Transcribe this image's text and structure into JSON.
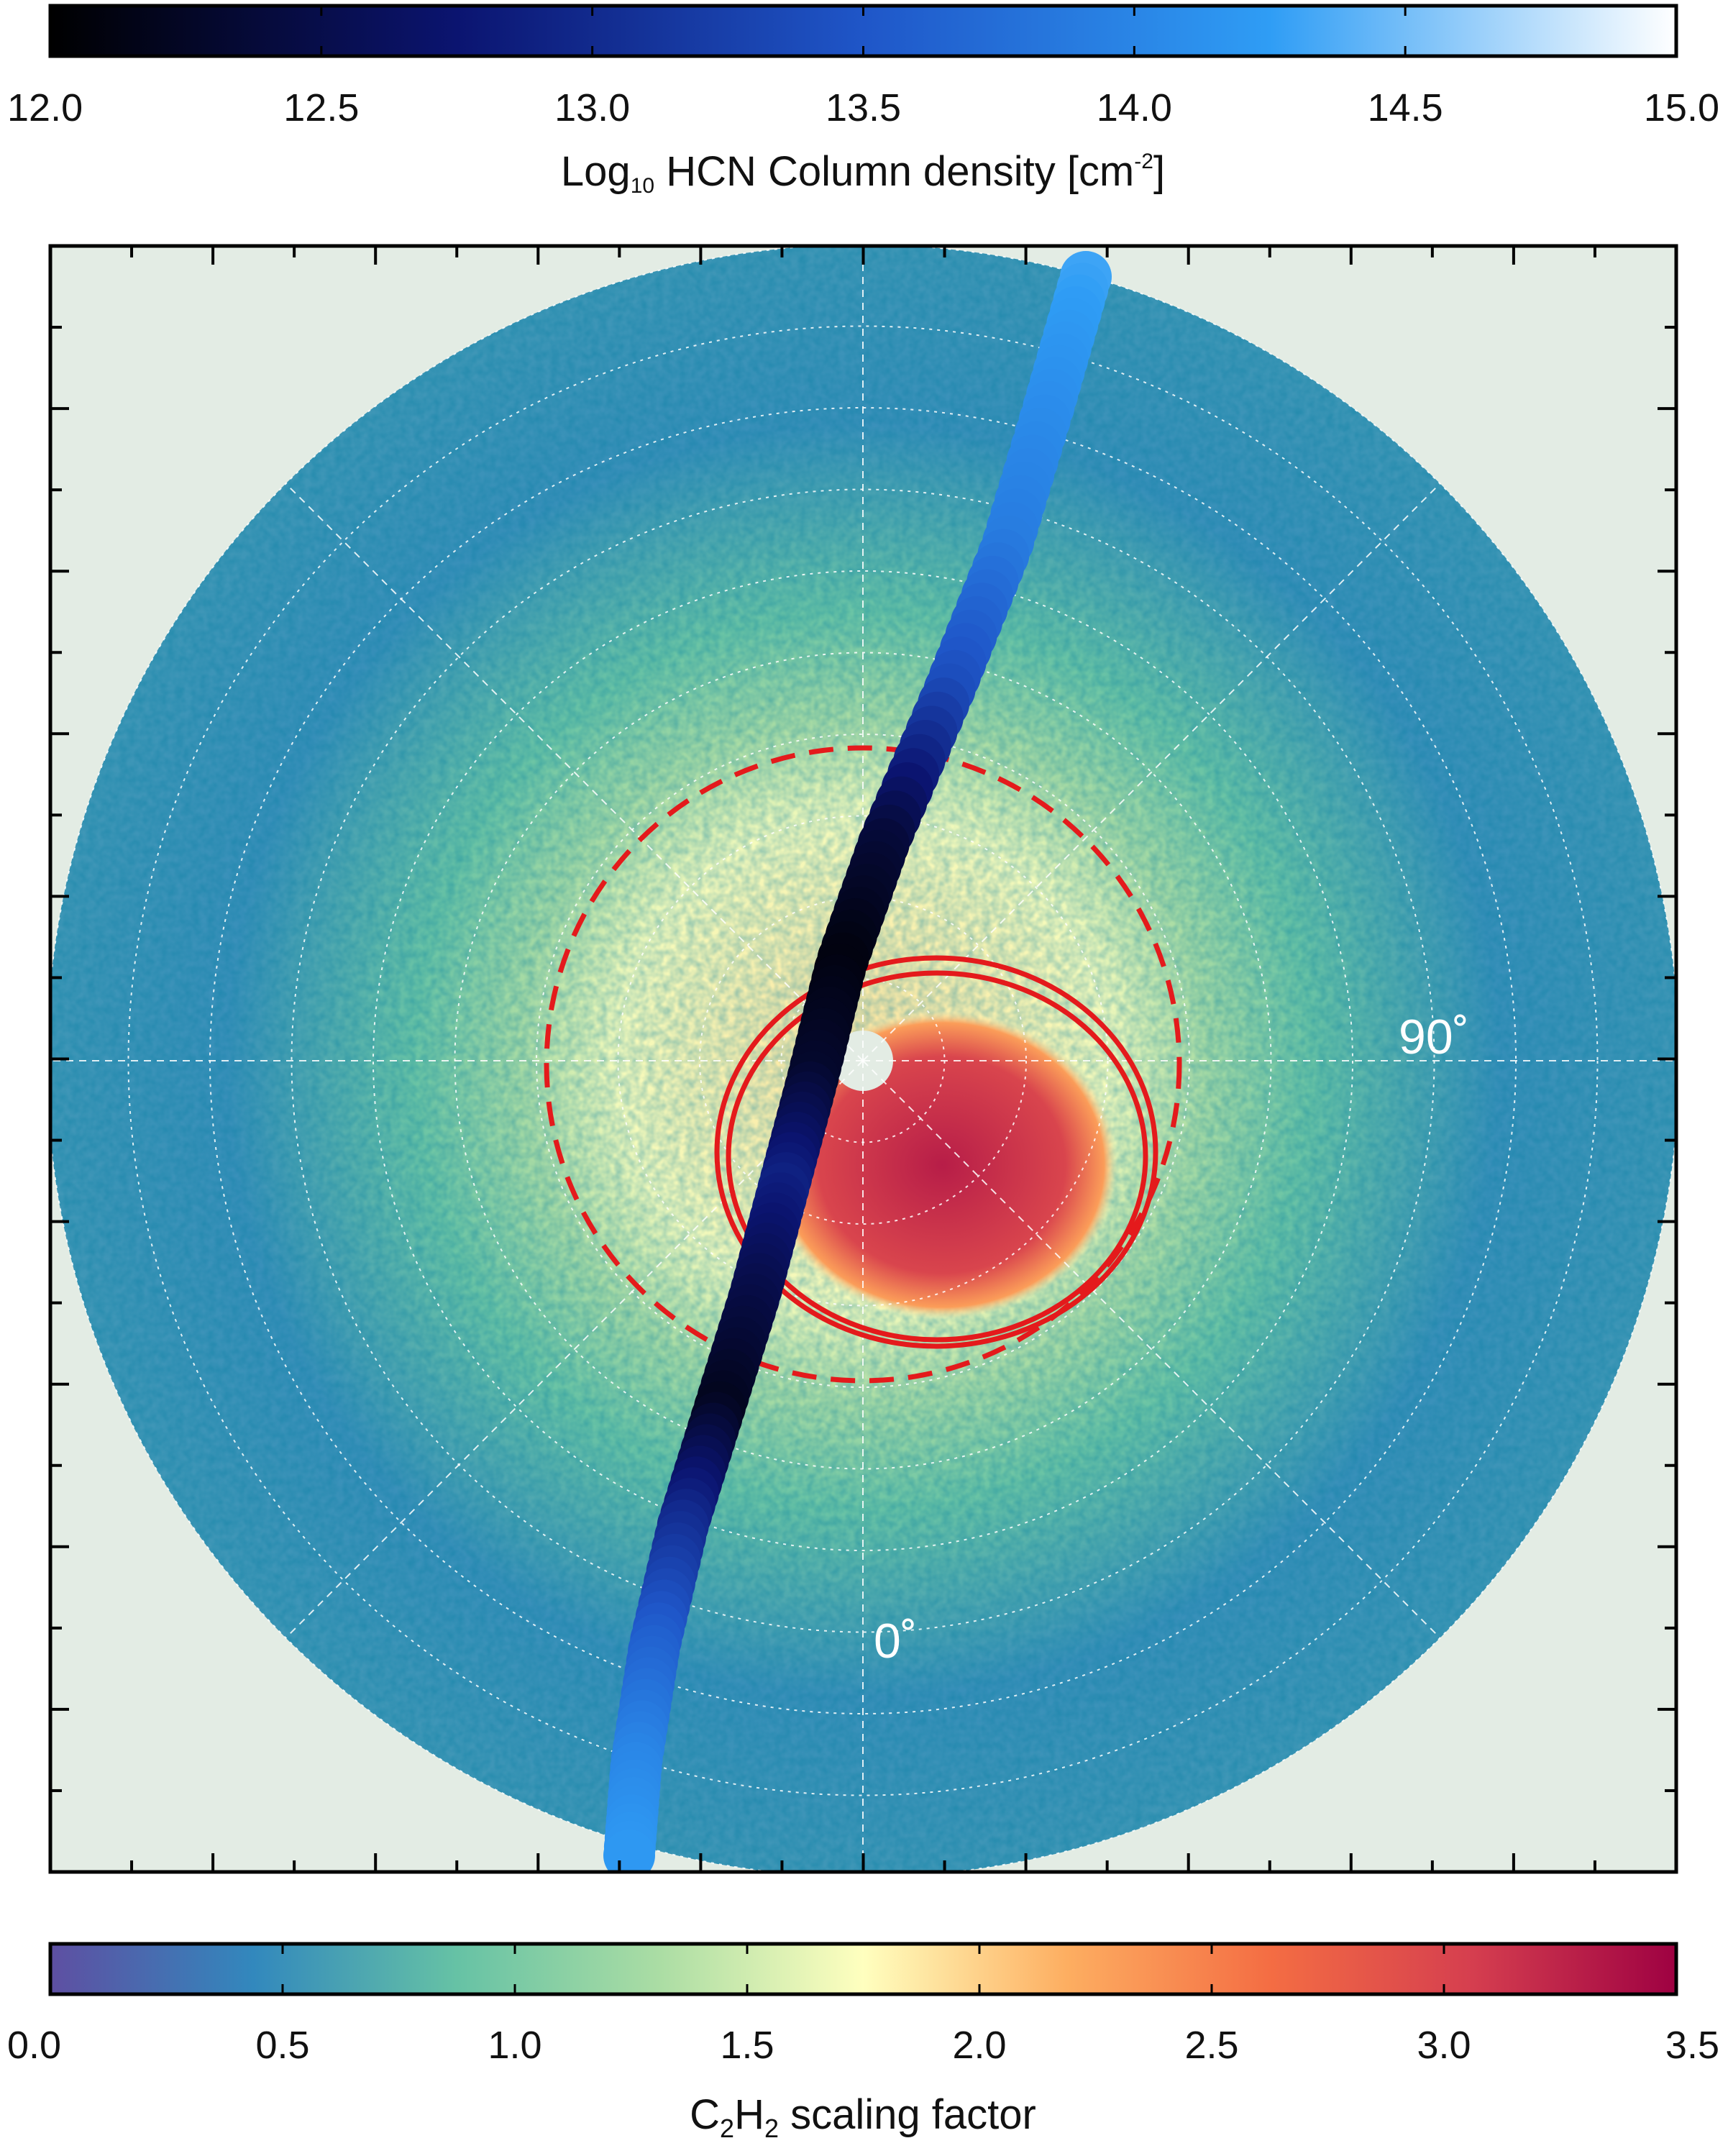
{
  "chart_data": {
    "type": "heatmap",
    "projection": "polar disk with azimuth grid",
    "colorbars": [
      {
        "id": "hcn",
        "position": "top",
        "title_main": "Log",
        "title_sub": "10",
        "title_rest": " HCN Column density [cm",
        "title_sup": "-2",
        "title_end": "]",
        "range": [
          12.0,
          15.0
        ],
        "ticks": [
          "12.0",
          "12.5",
          "13.0",
          "13.5",
          "14.0",
          "14.5",
          "15.0"
        ],
        "colormap": [
          "#000000",
          "#0b1470",
          "#1f56c8",
          "#2f9df5",
          "#ffffff"
        ]
      },
      {
        "id": "c2h2",
        "position": "bottom",
        "title_pre": "C",
        "title_sub1": "2",
        "title_mid": "H",
        "title_sub2": "2",
        "title_rest": " scaling factor",
        "range": [
          0.0,
          3.5
        ],
        "ticks": [
          "0.0",
          "0.5",
          "1.0",
          "1.5",
          "2.0",
          "2.5",
          "3.0",
          "3.5"
        ],
        "colormap": [
          "#5e4fa2",
          "#3288bd",
          "#66c2a5",
          "#abdda4",
          "#ffffbf",
          "#fdae61",
          "#f46d43",
          "#d53e4f",
          "#9e0142"
        ]
      }
    ],
    "map": {
      "background_color": "#e3ece4",
      "zones": [
        {
          "r_fraction": 1.0,
          "scaling_factor": 0.55
        },
        {
          "r_fraction": 0.78,
          "scaling_factor": 0.5
        },
        {
          "r_fraction": 0.55,
          "scaling_factor": 0.9
        },
        {
          "r_fraction": 0.42,
          "scaling_factor": 1.3
        },
        {
          "r_fraction": 0.3,
          "scaling_factor": 1.7
        }
      ],
      "hot_spot_scaling_factor": 3.3
    },
    "track": {
      "description": "HCN column density along trajectory",
      "values_log10": [
        14.3,
        14.1,
        13.9,
        13.4,
        12.4,
        12.1,
        12.3,
        12.9,
        12.5,
        12.2,
        13.0,
        13.6,
        14.0,
        14.2
      ]
    },
    "annotations": [
      "90˚",
      "0˚"
    ],
    "grid": true,
    "contours": {
      "dashed_circle_color": "#e41a1c",
      "solid_ellipses_color": "#e41a1c",
      "solid_ellipse_count": 2
    }
  }
}
